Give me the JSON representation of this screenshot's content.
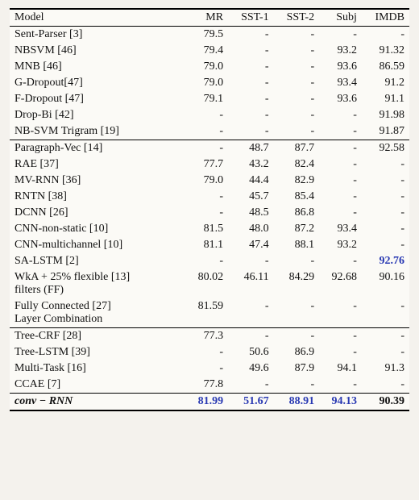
{
  "type": "table",
  "background_color": "#f4f2ed",
  "table_background": "#fbfaf6",
  "text_color": "#111111",
  "highlight_color": "#2a3ab3",
  "rule_color": "#000000",
  "font_family": "serif",
  "header_fontsize": 14,
  "cell_fontsize": 14,
  "columns": [
    {
      "key": "model",
      "label": "Model",
      "align": "left",
      "width_pct": 44
    },
    {
      "key": "mr",
      "label": "MR",
      "align": "right"
    },
    {
      "key": "sst1",
      "label": "SST-1",
      "align": "right"
    },
    {
      "key": "sst2",
      "label": "SST-2",
      "align": "right"
    },
    {
      "key": "subj",
      "label": "Subj",
      "align": "right"
    },
    {
      "key": "imdb",
      "label": "IMDB",
      "align": "right"
    }
  ],
  "sections": [
    {
      "rows": [
        {
          "model": "Sent-Parser [3]",
          "mr": "79.5",
          "sst1": "-",
          "sst2": "-",
          "subj": "-",
          "imdb": "-"
        },
        {
          "model": "NBSVM [46]",
          "mr": "79.4",
          "sst1": "-",
          "sst2": "-",
          "subj": "93.2",
          "imdb": "91.32"
        },
        {
          "model": "MNB [46]",
          "mr": "79.0",
          "sst1": "-",
          "sst2": "-",
          "subj": "93.6",
          "imdb": "86.59"
        },
        {
          "model": "G-Dropout[47]",
          "mr": "79.0",
          "sst1": "-",
          "sst2": "-",
          "subj": "93.4",
          "imdb": "91.2"
        },
        {
          "model": "F-Dropout [47]",
          "mr": "79.1",
          "sst1": "-",
          "sst2": "-",
          "subj": "93.6",
          "imdb": "91.1"
        },
        {
          "model": "Drop-Bi [42]",
          "mr": "-",
          "sst1": "-",
          "sst2": "-",
          "subj": "-",
          "imdb": "91.98"
        },
        {
          "model": "NB-SVM Trigram [19]",
          "mr": "-",
          "sst1": "-",
          "sst2": "-",
          "subj": "-",
          "imdb": "91.87"
        }
      ]
    },
    {
      "rows": [
        {
          "model": "Paragraph-Vec [14]",
          "mr": "-",
          "sst1": "48.7",
          "sst2": "87.7",
          "subj": "-",
          "imdb": "92.58"
        },
        {
          "model": "RAE [37]",
          "mr": "77.7",
          "sst1": "43.2",
          "sst2": "82.4",
          "subj": "-",
          "imdb": "-"
        },
        {
          "model": "MV-RNN [36]",
          "mr": "79.0",
          "sst1": "44.4",
          "sst2": "82.9",
          "subj": "-",
          "imdb": "-"
        },
        {
          "model": "RNTN [38]",
          "mr": "-",
          "sst1": "45.7",
          "sst2": "85.4",
          "subj": "-",
          "imdb": "-"
        },
        {
          "model": "DCNN [26]",
          "mr": "-",
          "sst1": "48.5",
          "sst2": "86.8",
          "subj": "-",
          "imdb": "-"
        },
        {
          "model": "CNN-non-static [10]",
          "mr": "81.5",
          "sst1": "48.0",
          "sst2": "87.2",
          "subj": "93.4",
          "imdb": "-"
        },
        {
          "model": "CNN-multichannel [10]",
          "mr": "81.1",
          "sst1": "47.4",
          "sst2": "88.1",
          "subj": "93.2",
          "imdb": "-"
        },
        {
          "model": "SA-LSTM [2]",
          "mr": "-",
          "sst1": "-",
          "sst2": "-",
          "subj": "-",
          "imdb": "92.76",
          "highlight": [
            "imdb"
          ]
        },
        {
          "model": "WkA + 25% flexible [13]",
          "model_sub": "filters (FF)",
          "mr": "80.02",
          "sst1": "46.11",
          "sst2": "84.29",
          "subj": "92.68",
          "imdb": "90.16"
        },
        {
          "model": "Fully Connected [27]",
          "model_sub": "Layer Combination",
          "mr": "81.59",
          "sst1": "-",
          "sst2": "-",
          "subj": "-",
          "imdb": "-"
        }
      ]
    },
    {
      "rows": [
        {
          "model": "Tree-CRF [28]",
          "mr": "77.3",
          "sst1": "-",
          "sst2": "-",
          "subj": "-",
          "imdb": "-"
        },
        {
          "model": "Tree-LSTM [39]",
          "mr": "-",
          "sst1": "50.6",
          "sst2": "86.9",
          "subj": "-",
          "imdb": "-"
        },
        {
          "model": "Multi-Task [16]",
          "mr": "-",
          "sst1": "49.6",
          "sst2": "87.9",
          "subj": "94.1",
          "imdb": "91.3"
        },
        {
          "model": "CCAE [7]",
          "mr": "77.8",
          "sst1": "-",
          "sst2": "-",
          "subj": "-",
          "imdb": "-"
        }
      ]
    }
  ],
  "footer": {
    "model_html": "conv − RNN",
    "mr": "81.99",
    "sst1": "51.67",
    "sst2": "88.91",
    "subj": "94.13",
    "imdb": "90.39",
    "highlight": [
      "mr",
      "sst1",
      "sst2",
      "subj"
    ]
  }
}
